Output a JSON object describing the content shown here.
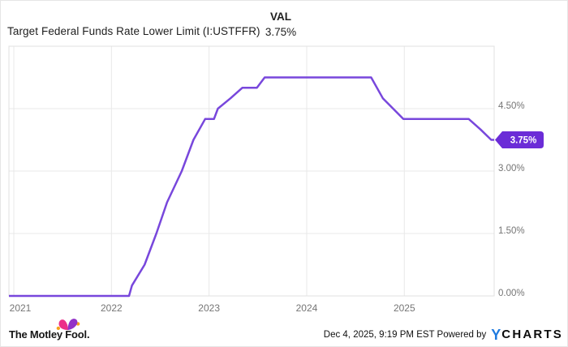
{
  "header": {
    "title": "Target Federal Funds Rate Lower Limit (I:USTFFR)",
    "val_label": "VAL",
    "val_value": "3.75%"
  },
  "chart_data": {
    "type": "line",
    "title": "Target Federal Funds Rate Lower Limit (I:USTFFR)",
    "unit": "%",
    "xlim": [
      2020.95,
      2025.92
    ],
    "ylim": [
      0,
      6
    ],
    "grid": true,
    "legend": "none",
    "x_ticks": [
      {
        "t": 2021,
        "label": "2021"
      },
      {
        "t": 2022,
        "label": "2022"
      },
      {
        "t": 2023,
        "label": "2023"
      },
      {
        "t": 2024,
        "label": "2024"
      },
      {
        "t": 2025,
        "label": "2025"
      }
    ],
    "y_ticks": [
      {
        "v": 0.0,
        "label": "0.00%"
      },
      {
        "v": 1.5,
        "label": "1.50%"
      },
      {
        "v": 3.0,
        "label": "3.00%"
      },
      {
        "v": 4.5,
        "label": "4.50%"
      }
    ],
    "last_value_label": "3.75%",
    "series": [
      {
        "name": "Target Federal Funds Rate Lower Limit",
        "points": [
          {
            "date": "2021-01-01",
            "t": 2020.95,
            "v": 0.0
          },
          {
            "date": "2022-03-10",
            "t": 2022.18,
            "v": 0.0
          },
          {
            "date": "2022-03-17",
            "t": 2022.21,
            "v": 0.25
          },
          {
            "date": "2022-05-05",
            "t": 2022.34,
            "v": 0.75
          },
          {
            "date": "2022-06-16",
            "t": 2022.46,
            "v": 1.5
          },
          {
            "date": "2022-07-28",
            "t": 2022.57,
            "v": 2.25
          },
          {
            "date": "2022-09-22",
            "t": 2022.72,
            "v": 3.0
          },
          {
            "date": "2022-11-03",
            "t": 2022.84,
            "v": 3.75
          },
          {
            "date": "2022-12-15",
            "t": 2022.96,
            "v": 4.25
          },
          {
            "date": "2023-01-25",
            "t": 2023.05,
            "v": 4.25
          },
          {
            "date": "2023-02-02",
            "t": 2023.09,
            "v": 4.5
          },
          {
            "date": "2023-03-23",
            "t": 2023.22,
            "v": 4.75
          },
          {
            "date": "2023-05-04",
            "t": 2023.34,
            "v": 5.0
          },
          {
            "date": "2023-06-28",
            "t": 2023.49,
            "v": 5.0
          },
          {
            "date": "2023-07-27",
            "t": 2023.57,
            "v": 5.25
          },
          {
            "date": "2024-08-28",
            "t": 2024.66,
            "v": 5.25
          },
          {
            "date": "2024-09-19",
            "t": 2024.78,
            "v": 4.75
          },
          {
            "date": "2024-12-19",
            "t": 2024.99,
            "v": 4.25
          },
          {
            "date": "2025-08-28",
            "t": 2025.66,
            "v": 4.25
          },
          {
            "date": "2025-09-18",
            "t": 2025.78,
            "v": 4.0
          },
          {
            "date": "2025-10-29",
            "t": 2025.89,
            "v": 3.75
          },
          {
            "date": "2025-12-04",
            "t": 2025.92,
            "v": 3.75
          }
        ]
      }
    ]
  },
  "footer": {
    "brand": "The Motley Fool.",
    "timestamp": "Dec 4, 2025, 9:19 PM EST Powered by",
    "ycharts_y": "Y",
    "ycharts_rest": "CHARTS"
  },
  "colors": {
    "line": "#7847DC",
    "badge": "#6B2CD7",
    "badge_text": "#ffffff",
    "grid": "#e9e9e9",
    "plot_border": "#e0e0e0",
    "axis_text": "#757575",
    "title_text": "#1e1e1e",
    "ycharts_blue": "#1f7be0",
    "motley_pink": "#EC2E89",
    "motley_purple": "#9232C7",
    "motley_bell": "#F7A11B"
  }
}
